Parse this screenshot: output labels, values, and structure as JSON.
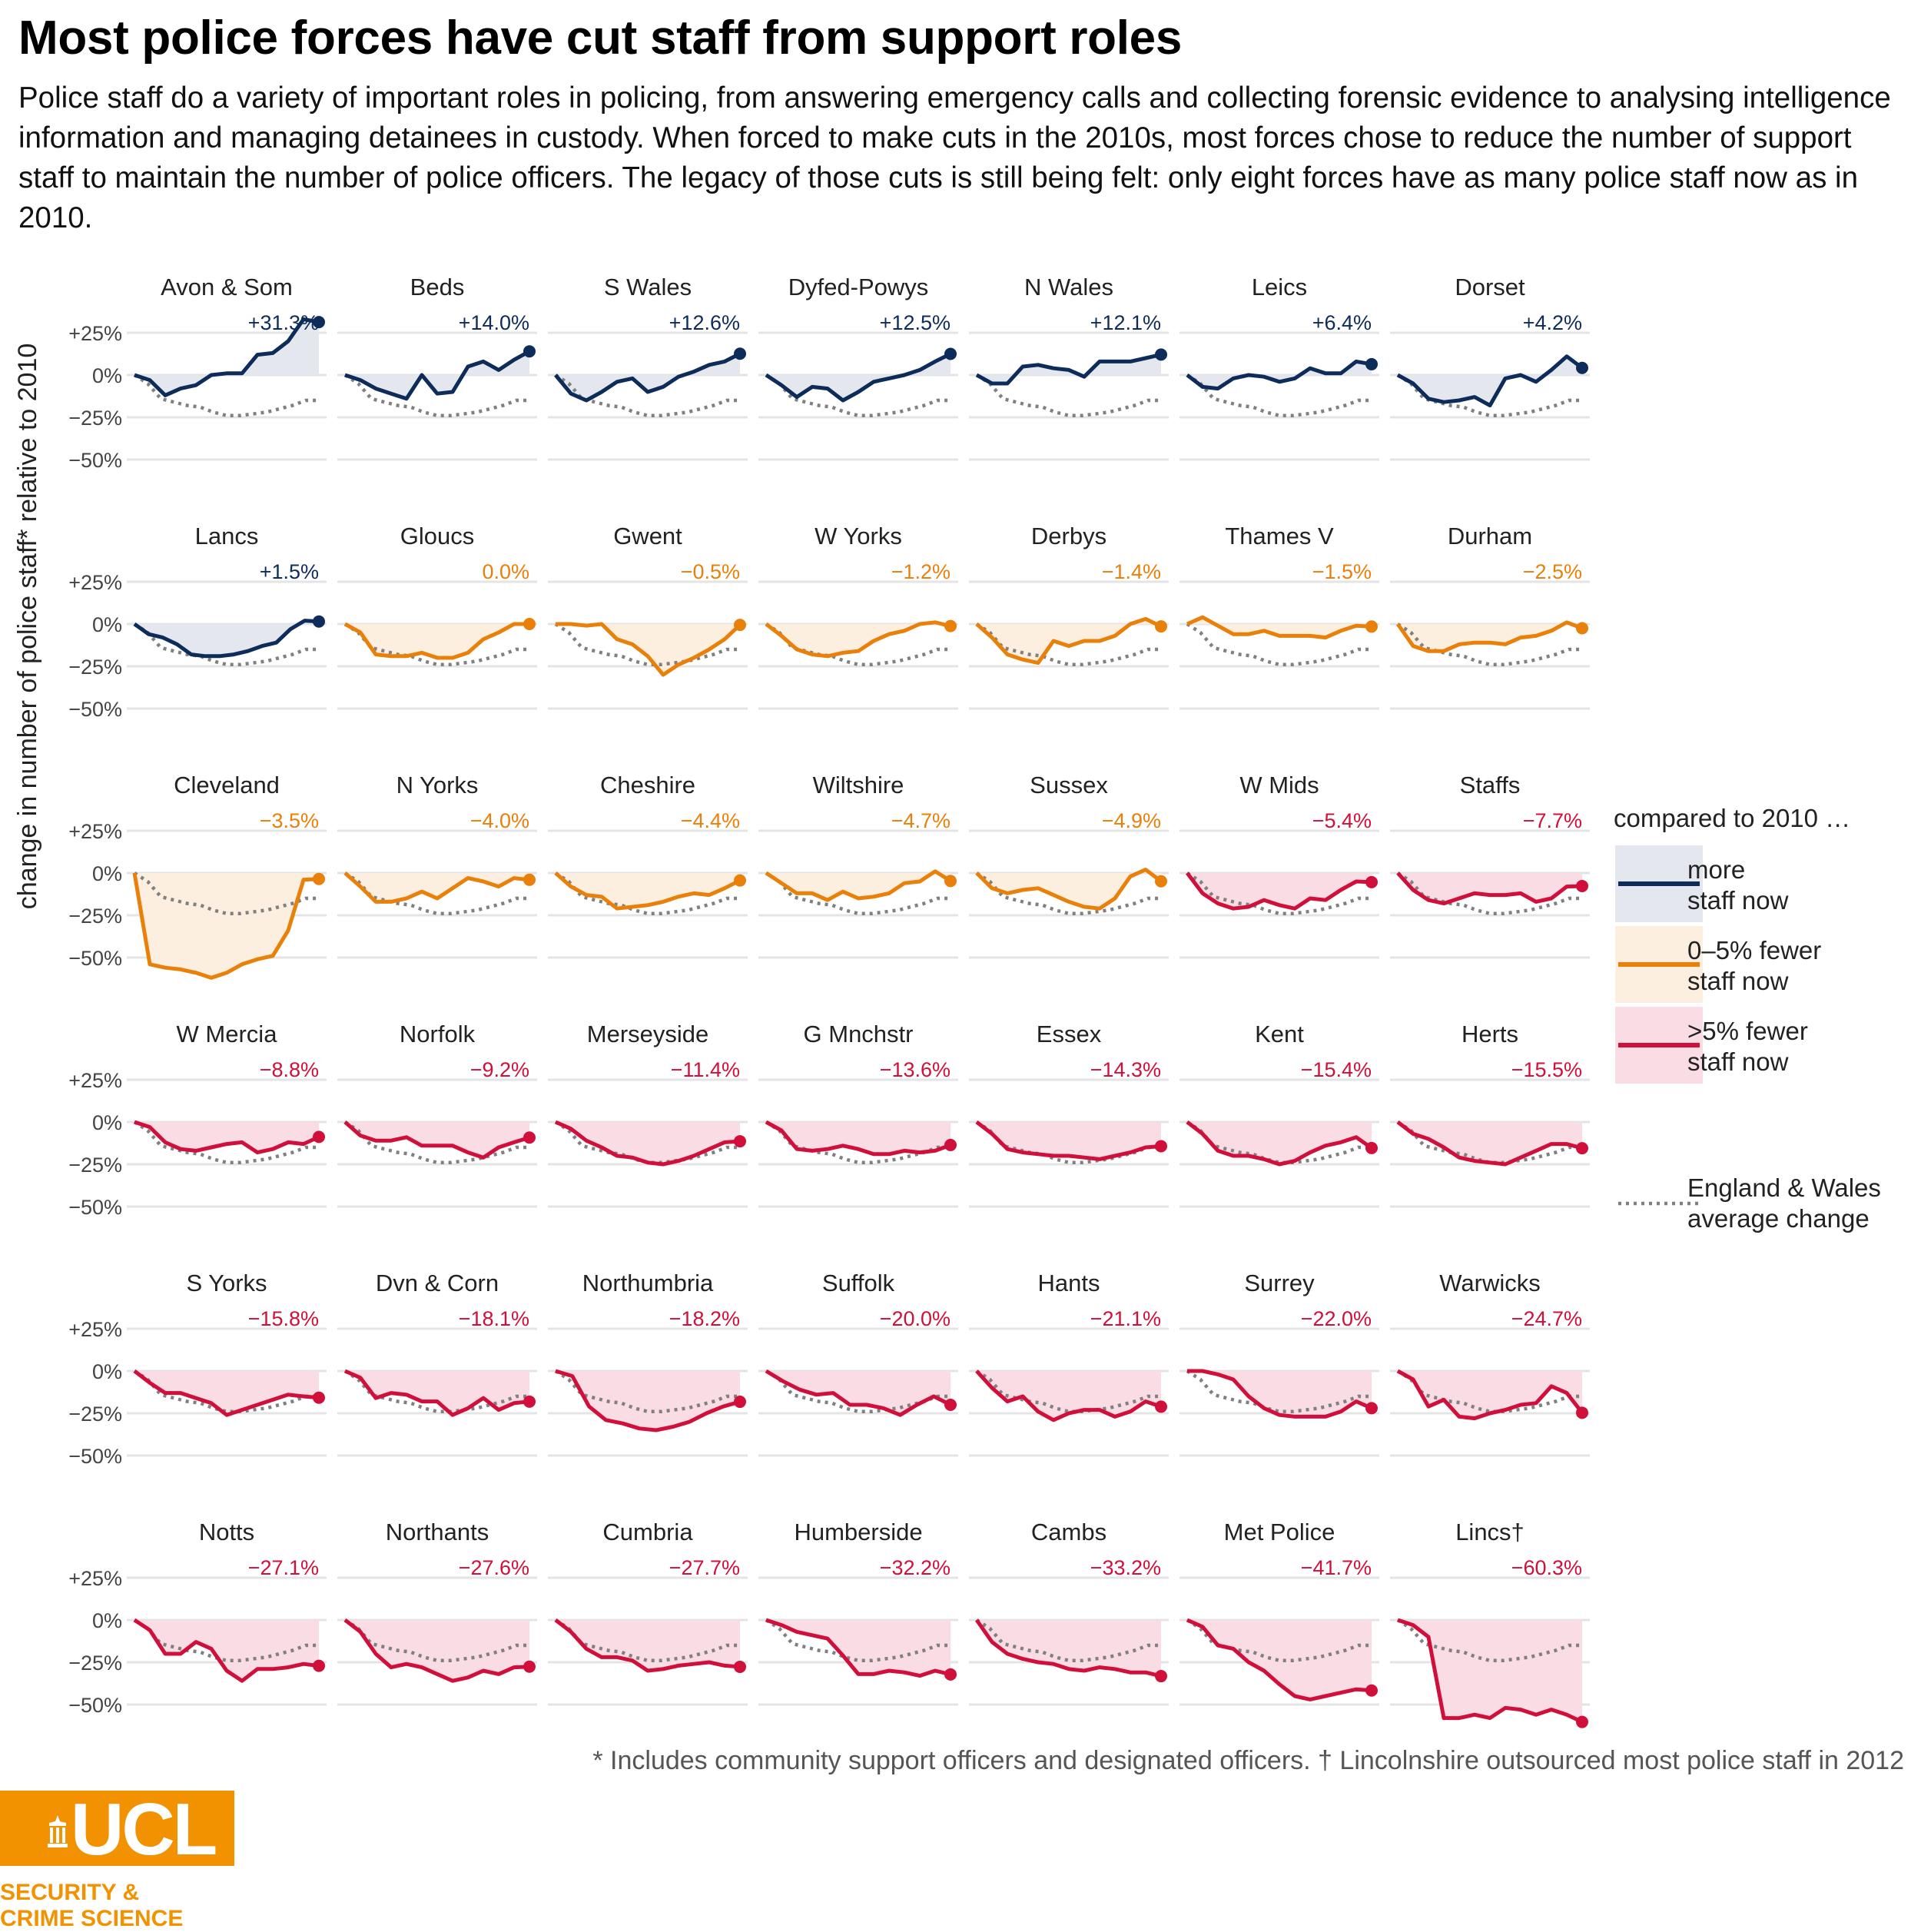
{
  "title": "Most police forces have cut staff from support roles",
  "subtitle": "Police staff do a variety of important roles in policing, from answering emergency calls and collecting forensic evidence to analysing intelligence information and managing detainees in custody. When forced to make cuts in the 2010s, most forces chose to reduce the number of support staff to maintain the number of police officers. The legacy of those cuts is still being felt: only eight forces have as many police staff now as in 2010.",
  "caption": "* Includes community support officers and designated officers. † Lincolnshire outsourced most police staff in 2012",
  "logo": {
    "text": "UCL",
    "subtext": "SECURITY &\nCRIME SCIENCE",
    "color": "#f29200"
  },
  "colors": {
    "more": "#0d2c5a",
    "more_fill": "#e4e8ee",
    "fewer0to5": "#e8800a",
    "fewer0to5_fill": "#fdefe0",
    "fewer5plus": "#d0103a",
    "fewer5plus_fill": "#f9dce4",
    "average": "#808080",
    "grid": "#e4e4e4"
  },
  "chart_data": {
    "type": "line",
    "layout": "small-multiples",
    "ylabel": "change in number of police staff* relative to 2010",
    "yticks": [
      "+25%",
      "0%",
      "−25%",
      "−50%"
    ],
    "ytick_values": [
      25,
      0,
      -25,
      -50
    ],
    "ylim": [
      -62,
      30
    ],
    "legend": {
      "title": "compared to 2010 …",
      "position": "right",
      "items": [
        {
          "key": "more",
          "label": "more staff now"
        },
        {
          "key": "fewer0to5",
          "label": "0–5% fewer staff now"
        },
        {
          "key": "fewer5plus",
          "label": ">5% fewer staff now"
        },
        {
          "key": "average",
          "label": "England & Wales average change"
        }
      ]
    },
    "average": [
      0,
      -5,
      -14,
      -16,
      -18,
      -19,
      -22,
      -24,
      -24,
      -23,
      -22,
      -20,
      -18,
      -15,
      -15
    ],
    "panels": [
      {
        "name": "Avon & Som",
        "label": "+31.3%",
        "cat": "more",
        "values": [
          0,
          -3,
          -12,
          -8,
          -6,
          0,
          1,
          1,
          12,
          13,
          20,
          33,
          31.3
        ]
      },
      {
        "name": "Beds",
        "label": "+14.0%",
        "cat": "more",
        "values": [
          0,
          -3,
          -8,
          -11,
          -14,
          0,
          -11,
          -10,
          5,
          8,
          3,
          9,
          14
        ]
      },
      {
        "name": "S Wales",
        "label": "+12.6%",
        "cat": "more",
        "values": [
          0,
          -11,
          -15,
          -10,
          -4,
          -2,
          -10,
          -7,
          -1,
          2,
          6,
          8,
          12.6
        ]
      },
      {
        "name": "Dyfed-Powys",
        "label": "+12.5%",
        "cat": "more",
        "values": [
          0,
          -6,
          -13,
          -7,
          -8,
          -15,
          -10,
          -4,
          -2,
          0,
          3,
          8,
          12.5
        ]
      },
      {
        "name": "N Wales",
        "label": "+12.1%",
        "cat": "more",
        "values": [
          0,
          -5,
          -5,
          5,
          6,
          4,
          3,
          -1,
          8,
          8,
          8,
          10,
          12.1
        ]
      },
      {
        "name": "Leics",
        "label": "+6.4%",
        "cat": "more",
        "values": [
          0,
          -7,
          -8,
          -2,
          0,
          -1,
          -4,
          -2,
          4,
          1,
          1,
          8,
          6.4
        ]
      },
      {
        "name": "Dorset",
        "label": "+4.2%",
        "cat": "more",
        "values": [
          0,
          -5,
          -14,
          -16,
          -15,
          -13,
          -18,
          -2,
          0,
          -4,
          3,
          11,
          4.2
        ]
      },
      {
        "name": "Lancs",
        "label": "+1.5%",
        "cat": "more",
        "values": [
          0,
          -6,
          -8,
          -12,
          -18,
          -19,
          -19,
          -18,
          -16,
          -13,
          -11,
          -3,
          2,
          1.5
        ]
      },
      {
        "name": "Gloucs",
        "label": "0.0%",
        "cat": "fewer0to5",
        "values": [
          0,
          -5,
          -18,
          -19,
          -19,
          -17,
          -20,
          -20,
          -17,
          -9,
          -5,
          0,
          0
        ]
      },
      {
        "name": "Gwent",
        "label": "−0.5%",
        "cat": "fewer0to5",
        "values": [
          0,
          0,
          -1,
          0,
          -9,
          -12,
          -19,
          -30,
          -24,
          -20,
          -15,
          -9,
          -0.5
        ]
      },
      {
        "name": "W Yorks",
        "label": "−1.2%",
        "cat": "fewer0to5",
        "values": [
          0,
          -7,
          -15,
          -18,
          -19,
          -17,
          -16,
          -10,
          -6,
          -4,
          0,
          1,
          -1.2
        ]
      },
      {
        "name": "Derbys",
        "label": "−1.4%",
        "cat": "fewer0to5",
        "values": [
          0,
          -8,
          -18,
          -21,
          -23,
          -10,
          -13,
          -10,
          -10,
          -7,
          0,
          3,
          -1.4
        ]
      },
      {
        "name": "Thames V",
        "label": "−1.5%",
        "cat": "fewer0to5",
        "values": [
          0,
          4,
          -1,
          -6,
          -6,
          -4,
          -7,
          -7,
          -7,
          -8,
          -4,
          -1,
          -1.5
        ]
      },
      {
        "name": "Durham",
        "label": "−2.5%",
        "cat": "fewer0to5",
        "values": [
          0,
          -13,
          -16,
          -16,
          -12,
          -11,
          -11,
          -12,
          -8,
          -7,
          -4,
          1,
          -2.5
        ]
      },
      {
        "name": "Cleveland",
        "label": "−3.5%",
        "cat": "fewer0to5",
        "values": [
          0,
          -54,
          -56,
          -57,
          -59,
          -62,
          -59,
          -54,
          -51,
          -49,
          -34,
          -4,
          -3.5
        ]
      },
      {
        "name": "N Yorks",
        "label": "−4.0%",
        "cat": "fewer0to5",
        "values": [
          0,
          -8,
          -17,
          -17,
          -15,
          -11,
          -15,
          -9,
          -3,
          -5,
          -8,
          -3,
          -4
        ]
      },
      {
        "name": "Cheshire",
        "label": "−4.4%",
        "cat": "fewer0to5",
        "values": [
          0,
          -8,
          -13,
          -14,
          -21,
          -20,
          -19,
          -17,
          -14,
          -12,
          -13,
          -9,
          -4.4
        ]
      },
      {
        "name": "Wiltshire",
        "label": "−4.7%",
        "cat": "fewer0to5",
        "values": [
          0,
          -6,
          -12,
          -12,
          -16,
          -11,
          -15,
          -14,
          -12,
          -6,
          -5,
          1,
          -4.7
        ]
      },
      {
        "name": "Sussex",
        "label": "−4.9%",
        "cat": "fewer0to5",
        "values": [
          0,
          -9,
          -12,
          -10,
          -9,
          -13,
          -17,
          -20,
          -21,
          -15,
          -2,
          2,
          -4.9
        ]
      },
      {
        "name": "W Mids",
        "label": "−5.4%",
        "cat": "fewer5plus",
        "values": [
          0,
          -12,
          -18,
          -21,
          -20,
          -16,
          -19,
          -21,
          -15,
          -16,
          -10,
          -5,
          -5.4
        ]
      },
      {
        "name": "Staffs",
        "label": "−7.7%",
        "cat": "fewer5plus",
        "values": [
          0,
          -10,
          -16,
          -18,
          -15,
          -12,
          -13,
          -13,
          -12,
          -17,
          -15,
          -8,
          -7.7
        ]
      },
      {
        "name": "W Mercia",
        "label": "−8.8%",
        "cat": "fewer5plus",
        "values": [
          0,
          -3,
          -12,
          -16,
          -17,
          -15,
          -13,
          -12,
          -18,
          -16,
          -12,
          -13,
          -8.8
        ]
      },
      {
        "name": "Norfolk",
        "label": "−9.2%",
        "cat": "fewer5plus",
        "values": [
          0,
          -8,
          -11,
          -11,
          -9,
          -14,
          -14,
          -14,
          -18,
          -21,
          -15,
          -12,
          -9.2
        ]
      },
      {
        "name": "Merseyside",
        "label": "−11.4%",
        "cat": "fewer5plus",
        "values": [
          0,
          -4,
          -11,
          -15,
          -20,
          -21,
          -24,
          -25,
          -23,
          -20,
          -16,
          -12,
          -11.4
        ]
      },
      {
        "name": "G Mnchstr",
        "label": "−13.6%",
        "cat": "fewer5plus",
        "values": [
          0,
          -5,
          -16,
          -17,
          -16,
          -14,
          -16,
          -19,
          -19,
          -17,
          -18,
          -17,
          -13.6
        ]
      },
      {
        "name": "Essex",
        "label": "−14.3%",
        "cat": "fewer5plus",
        "values": [
          0,
          -7,
          -16,
          -18,
          -19,
          -20,
          -20,
          -21,
          -22,
          -20,
          -18,
          -15,
          -14.3
        ]
      },
      {
        "name": "Kent",
        "label": "−15.4%",
        "cat": "fewer5plus",
        "values": [
          0,
          -7,
          -17,
          -20,
          -20,
          -22,
          -25,
          -23,
          -18,
          -14,
          -12,
          -9,
          -15.4
        ]
      },
      {
        "name": "Herts",
        "label": "−15.5%",
        "cat": "fewer5plus",
        "values": [
          0,
          -7,
          -10,
          -15,
          -21,
          -23,
          -24,
          -25,
          -21,
          -17,
          -13,
          -13,
          -15.5
        ]
      },
      {
        "name": "S Yorks",
        "label": "−15.8%",
        "cat": "fewer5plus",
        "values": [
          0,
          -7,
          -13,
          -13,
          -16,
          -19,
          -26,
          -23,
          -20,
          -17,
          -14,
          -15,
          -15.8
        ]
      },
      {
        "name": "Dvn & Corn",
        "label": "−18.1%",
        "cat": "fewer5plus",
        "values": [
          0,
          -4,
          -16,
          -13,
          -14,
          -18,
          -18,
          -26,
          -22,
          -16,
          -23,
          -19,
          -18.1
        ]
      },
      {
        "name": "Northumbria",
        "label": "−18.2%",
        "cat": "fewer5plus",
        "values": [
          0,
          -3,
          -21,
          -29,
          -31,
          -34,
          -35,
          -33,
          -30,
          -25,
          -21,
          -18.2
        ]
      },
      {
        "name": "Suffolk",
        "label": "−20.0%",
        "cat": "fewer5plus",
        "values": [
          0,
          -6,
          -11,
          -14,
          -13,
          -20,
          -20,
          -22,
          -26,
          -20,
          -15,
          -20
        ]
      },
      {
        "name": "Hants",
        "label": "−21.1%",
        "cat": "fewer5plus",
        "values": [
          0,
          -10,
          -18,
          -15,
          -24,
          -29,
          -25,
          -23,
          -23,
          -27,
          -24,
          -18,
          -21.1
        ]
      },
      {
        "name": "Surrey",
        "label": "−22.0%",
        "cat": "fewer5plus",
        "values": [
          0,
          0,
          -2,
          -5,
          -15,
          -22,
          -26,
          -27,
          -27,
          -27,
          -24,
          -18,
          -22
        ]
      },
      {
        "name": "Warwicks",
        "label": "−24.7%",
        "cat": "fewer5plus",
        "values": [
          0,
          -5,
          -21,
          -17,
          -27,
          -28,
          -25,
          -23,
          -20,
          -19,
          -9,
          -13,
          -24.7
        ]
      },
      {
        "name": "Notts",
        "label": "−27.1%",
        "cat": "fewer5plus",
        "values": [
          0,
          -6,
          -20,
          -20,
          -13,
          -17,
          -30,
          -36,
          -29,
          -29,
          -28,
          -26,
          -27.1
        ]
      },
      {
        "name": "Northants",
        "label": "−27.6%",
        "cat": "fewer5plus",
        "values": [
          0,
          -7,
          -20,
          -28,
          -26,
          -28,
          -32,
          -36,
          -34,
          -30,
          -32,
          -28,
          -27.6
        ]
      },
      {
        "name": "Cumbria",
        "label": "−27.7%",
        "cat": "fewer5plus",
        "values": [
          0,
          -7,
          -17,
          -22,
          -22,
          -24,
          -30,
          -29,
          -27,
          -26,
          -25,
          -27,
          -27.7
        ]
      },
      {
        "name": "Humberside",
        "label": "−32.2%",
        "cat": "fewer5plus",
        "values": [
          0,
          -3,
          -7,
          -9,
          -11,
          -21,
          -32,
          -32,
          -30,
          -31,
          -33,
          -30,
          -32.2
        ]
      },
      {
        "name": "Cambs",
        "label": "−33.2%",
        "cat": "fewer5plus",
        "values": [
          0,
          -13,
          -20,
          -23,
          -25,
          -26,
          -29,
          -30,
          -28,
          -29,
          -31,
          -31,
          -33.2
        ]
      },
      {
        "name": "Met Police",
        "label": "−41.7%",
        "cat": "fewer5plus",
        "values": [
          0,
          -4,
          -15,
          -17,
          -25,
          -30,
          -38,
          -45,
          -47,
          -45,
          -43,
          -41,
          -41.7
        ]
      },
      {
        "name": "Lincs†",
        "label": "−60.3%",
        "cat": "fewer5plus",
        "values": [
          0,
          -3,
          -10,
          -58,
          -58,
          -56,
          -58,
          -52,
          -53,
          -56,
          -53,
          -56,
          -60.3
        ]
      }
    ]
  }
}
